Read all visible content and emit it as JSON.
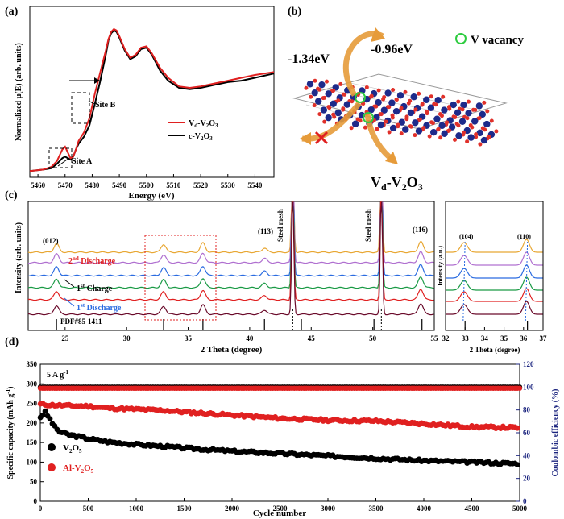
{
  "chart_data": [
    {
      "panel": "(a)",
      "type": "line",
      "xlabel": "Energy (eV)",
      "ylabel": "Normalized μ(E) (arb. units)",
      "xlim": [
        5457,
        5547
      ],
      "x_ticks": [
        5460,
        5470,
        5480,
        5490,
        5500,
        5510,
        5520,
        5530,
        5540
      ],
      "annotations": [
        "Site A",
        "Site B"
      ],
      "series": [
        {
          "name": "Vd-V2O3",
          "name_sub": [
            "d",
            "2",
            "3"
          ],
          "color": "#e02020",
          "x": [
            5457,
            5462,
            5465,
            5467,
            5469,
            5470,
            5471,
            5472,
            5473,
            5474,
            5475,
            5477,
            5479,
            5481,
            5483,
            5485,
            5486,
            5487,
            5488,
            5489,
            5490,
            5492,
            5494,
            5496,
            5498,
            5500,
            5502,
            5505,
            5508,
            5512,
            5516,
            5520,
            5525,
            5530,
            5535,
            5540,
            5547
          ],
          "y": [
            0.01,
            0.02,
            0.04,
            0.08,
            0.16,
            0.18,
            0.14,
            0.1,
            0.11,
            0.16,
            0.22,
            0.28,
            0.38,
            0.55,
            0.7,
            0.85,
            0.93,
            0.98,
            1.0,
            0.99,
            0.95,
            0.86,
            0.8,
            0.82,
            0.87,
            0.88,
            0.83,
            0.73,
            0.66,
            0.6,
            0.59,
            0.6,
            0.62,
            0.64,
            0.66,
            0.68,
            0.7
          ]
        },
        {
          "name": "c-V2O3",
          "name_sub": [
            "",
            "2",
            "3"
          ],
          "color": "#000000",
          "x": [
            5457,
            5462,
            5465,
            5467,
            5469,
            5470,
            5471,
            5472,
            5473,
            5474,
            5475,
            5477,
            5479,
            5481,
            5483,
            5485,
            5486,
            5487,
            5488,
            5489,
            5490,
            5492,
            5494,
            5496,
            5498,
            5500,
            5502,
            5505,
            5508,
            5512,
            5516,
            5520,
            5525,
            5530,
            5535,
            5540,
            5547
          ],
          "y": [
            0.01,
            0.02,
            0.03,
            0.06,
            0.1,
            0.11,
            0.1,
            0.09,
            0.11,
            0.16,
            0.2,
            0.25,
            0.33,
            0.48,
            0.64,
            0.82,
            0.92,
            0.97,
            0.99,
            0.98,
            0.94,
            0.85,
            0.79,
            0.81,
            0.86,
            0.87,
            0.82,
            0.71,
            0.64,
            0.59,
            0.58,
            0.59,
            0.61,
            0.63,
            0.64,
            0.66,
            0.69
          ]
        }
      ]
    },
    {
      "panel": "(b)",
      "type": "diagram",
      "labels": [
        "-1.34eV",
        "-0.96eV",
        "V vacancy",
        "Vd-V2O3"
      ]
    },
    {
      "panel": "(c)",
      "type": "line",
      "xlabel": "2 Theta (degree)",
      "ylabel": "Intensity (arb. units)",
      "xlim": [
        22,
        55
      ],
      "x_ticks": [
        25,
        30,
        35,
        40,
        45,
        50,
        55
      ],
      "peak_labels": [
        "(012)",
        "(113)",
        "Steel mesh",
        "Steel mesh",
        "(116)"
      ],
      "curve_labels": [
        "2nd Discharge",
        "1st Charge",
        "1st Discharge"
      ],
      "reference": "PDF#85-1411",
      "reference_lines": [
        24.3,
        33.0,
        36.2,
        41.2,
        44.2,
        50.1,
        54.0
      ],
      "series_colors": [
        "#e8a733",
        "#b070d0",
        "#2a6be0",
        "#1a9a45",
        "#e02020",
        "#6a0a2a"
      ],
      "peaks_main": [
        [
          24.3,
          1.2
        ],
        [
          33.0,
          1.1
        ],
        [
          36.2,
          1.3
        ],
        [
          41.2,
          0.6
        ],
        [
          53.9,
          1.5
        ]
      ]
    },
    {
      "panel": "(c-inset)",
      "type": "line",
      "xlabel": "2 Theta (degree)",
      "ylabel": "Intensity (a.u.)",
      "xlim": [
        32,
        37
      ],
      "x_ticks": [
        32,
        33,
        34,
        35,
        36,
        37
      ],
      "peak_labels": [
        "(104)",
        "(110)"
      ],
      "series_colors": [
        "#e8a733",
        "#b070d0",
        "#2a6be0",
        "#1a9a45",
        "#e02020",
        "#6a0a2a"
      ]
    },
    {
      "panel": "(d)",
      "type": "scatter",
      "condition": "5 A g",
      "condition_sup": "-1",
      "xlabel": "Cycle number",
      "ylabel": "Specific capacity (mAh g-1)",
      "y2label": "Coulombic efficiency (%)",
      "xlim": [
        0,
        5000
      ],
      "ylim": [
        0,
        350
      ],
      "y2lim": [
        0,
        120
      ],
      "x_ticks": [
        0,
        500,
        1000,
        1500,
        2000,
        2500,
        3000,
        3500,
        4000,
        4500,
        5000
      ],
      "y_ticks": [
        0,
        50,
        100,
        150,
        200,
        250,
        300,
        350
      ],
      "y2_ticks": [
        0,
        20,
        40,
        60,
        80,
        100,
        120
      ],
      "series": [
        {
          "name": "V2O5",
          "name_sub": "2,5",
          "color": "#000000",
          "x": [
            1,
            50,
            100,
            150,
            200,
            300,
            400,
            500,
            700,
            1000,
            1300,
            1500,
            2000,
            2500,
            3000,
            3500,
            4000,
            4500,
            5000
          ],
          "y": [
            215,
            228,
            210,
            190,
            178,
            170,
            165,
            160,
            152,
            145,
            140,
            136,
            128,
            122,
            116,
            110,
            104,
            100,
            96
          ]
        },
        {
          "name": "Al-V2O5",
          "name_sub": "2,5",
          "color": "#e02020",
          "x": [
            1,
            100,
            300,
            500,
            700,
            1000,
            1300,
            1500,
            2000,
            2500,
            3000,
            3500,
            4000,
            4500,
            5000
          ],
          "y": [
            248,
            246,
            244,
            243,
            238,
            235,
            232,
            228,
            220,
            212,
            207,
            205,
            198,
            190,
            188
          ]
        },
        {
          "name": "CE (V2O5)",
          "color": "#000000",
          "axis": "right",
          "x": [
            0,
            5000
          ],
          "y": [
            100,
            100
          ]
        },
        {
          "name": "CE (Al-V2O5)",
          "color": "#e02020",
          "axis": "right",
          "x": [
            0,
            5000
          ],
          "y": [
            99,
            99
          ]
        }
      ]
    }
  ]
}
